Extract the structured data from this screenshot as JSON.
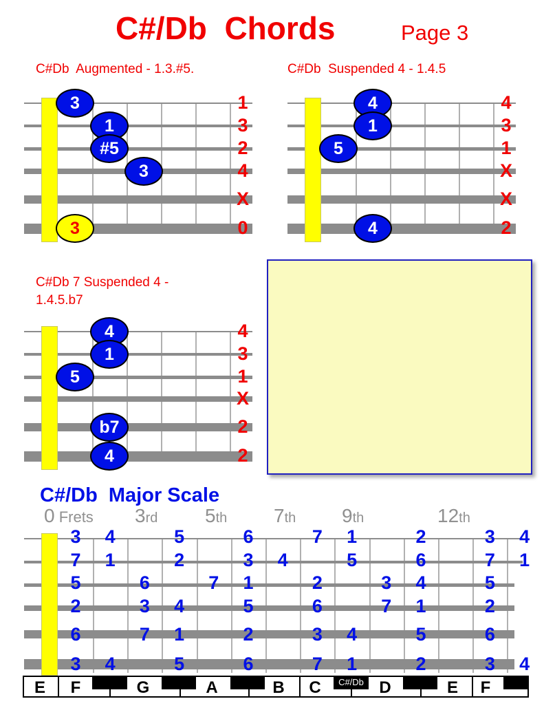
{
  "header": {
    "title": "C#/Db  Chords",
    "page": "Page 3"
  },
  "chords": [
    {
      "title": "C#Db  Augmented - 1.3.#5.",
      "title2": "",
      "string_labels": [
        "1",
        "3",
        "2",
        "4",
        "X",
        "0"
      ],
      "dots": [
        {
          "string": 1,
          "fret": 1,
          "label": "3"
        },
        {
          "string": 2,
          "fret": 2,
          "label": "1"
        },
        {
          "string": 3,
          "fret": 2,
          "label": "#5"
        },
        {
          "string": 4,
          "fret": 3,
          "label": "3"
        },
        {
          "string": 6,
          "fret": 1,
          "label": "3",
          "style": "open"
        }
      ]
    },
    {
      "title": "C#Db  Suspended 4 - 1.4.5",
      "title2": "",
      "string_labels": [
        "4",
        "3",
        "1",
        "X",
        "X",
        "2"
      ],
      "dots": [
        {
          "string": 1,
          "fret": 2,
          "label": "4"
        },
        {
          "string": 2,
          "fret": 2,
          "label": "1"
        },
        {
          "string": 3,
          "fret": 1,
          "label": "5"
        },
        {
          "string": 6,
          "fret": 2,
          "label": "4"
        }
      ]
    },
    {
      "title": "C#Db 7 Suspended 4 -",
      "title2": "1.4.5.b7",
      "string_labels": [
        "4",
        "3",
        "1",
        "X",
        "2",
        "2"
      ],
      "dots": [
        {
          "string": 1,
          "fret": 2,
          "label": "4"
        },
        {
          "string": 2,
          "fret": 2,
          "label": "1"
        },
        {
          "string": 3,
          "fret": 1,
          "label": "5"
        },
        {
          "string": 5,
          "fret": 2,
          "label": "b7"
        },
        {
          "string": 6,
          "fret": 2,
          "label": "4"
        }
      ]
    }
  ],
  "scale": {
    "title": "C#/Db  Major Scale",
    "fret_markers": [
      {
        "num": "0",
        "suf": " Frets"
      },
      {
        "num": "3",
        "suf": "rd"
      },
      {
        "num": "5",
        "suf": "th"
      },
      {
        "num": "7",
        "suf": "th"
      },
      {
        "num": "9",
        "suf": "th"
      },
      {
        "num": "12",
        "suf": "th"
      }
    ],
    "strings": [
      [
        [
          1,
          "3"
        ],
        [
          2,
          "4"
        ],
        [
          4,
          "5"
        ],
        [
          6,
          "6"
        ],
        [
          8,
          "7"
        ],
        [
          9,
          "1"
        ],
        [
          11,
          "2"
        ],
        [
          13,
          "3"
        ],
        [
          14,
          "4"
        ]
      ],
      [
        [
          1,
          "7"
        ],
        [
          2,
          "1"
        ],
        [
          4,
          "2"
        ],
        [
          6,
          "3"
        ],
        [
          7,
          "4"
        ],
        [
          9,
          "5"
        ],
        [
          11,
          "6"
        ],
        [
          13,
          "7"
        ],
        [
          14,
          "1"
        ]
      ],
      [
        [
          1,
          "5"
        ],
        [
          3,
          "6"
        ],
        [
          5,
          "7"
        ],
        [
          6,
          "1"
        ],
        [
          8,
          "2"
        ],
        [
          10,
          "3"
        ],
        [
          11,
          "4"
        ],
        [
          13,
          "5"
        ]
      ],
      [
        [
          1,
          "2"
        ],
        [
          3,
          "3"
        ],
        [
          4,
          "4"
        ],
        [
          6,
          "5"
        ],
        [
          8,
          "6"
        ],
        [
          10,
          "7"
        ],
        [
          11,
          "1"
        ],
        [
          13,
          "2"
        ]
      ],
      [
        [
          1,
          "6"
        ],
        [
          3,
          "7"
        ],
        [
          4,
          "1"
        ],
        [
          6,
          "2"
        ],
        [
          8,
          "3"
        ],
        [
          9,
          "4"
        ],
        [
          11,
          "5"
        ],
        [
          13,
          "6"
        ]
      ],
      [
        [
          1,
          "3"
        ],
        [
          2,
          "4"
        ],
        [
          4,
          "5"
        ],
        [
          6,
          "6"
        ],
        [
          8,
          "7"
        ],
        [
          9,
          "1"
        ],
        [
          11,
          "2"
        ],
        [
          13,
          "3"
        ],
        [
          14,
          "4"
        ]
      ]
    ],
    "keys": [
      "E",
      "F",
      "G",
      "A",
      "B",
      "C",
      "D",
      "E",
      "F"
    ],
    "black_key_label": "C#/Db"
  },
  "colors": {
    "title": "#f00000",
    "dot": "#0010e6",
    "nut": "#ffff00",
    "scale_text": "#0010e6"
  }
}
